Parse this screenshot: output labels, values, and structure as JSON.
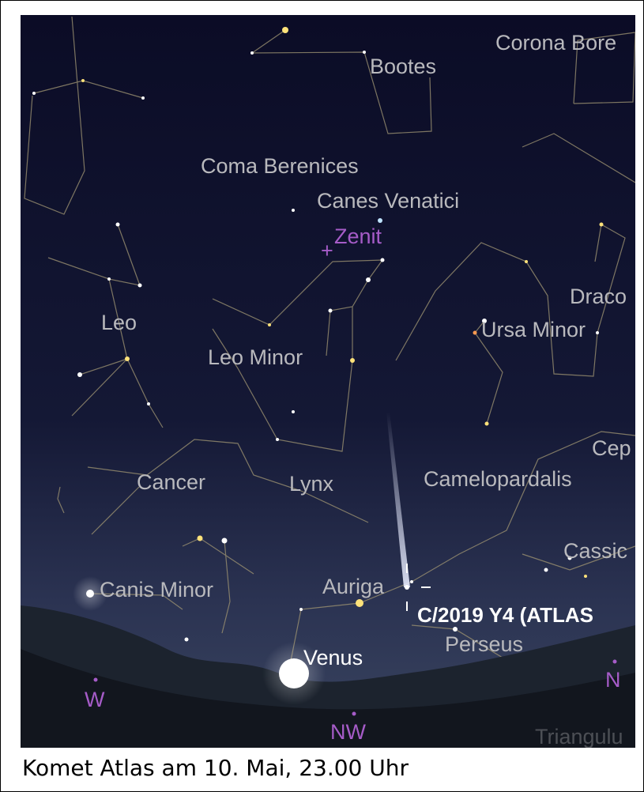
{
  "sky": {
    "constellations": [
      "Corona Bore",
      "Bootes",
      "Coma Berenices",
      "Canes Venatici",
      "Leo",
      "Leo Minor",
      "Draco",
      "Ursa Minor",
      "Cep",
      "Cancer",
      "Lynx",
      "Camelopardalis",
      "Cassic",
      "Canis Minor",
      "Auriga",
      "Perseus",
      "Triangulu"
    ],
    "zenith": "Zenit",
    "comet": "C/2019 Y4 (ATLAS",
    "planet": "Venus",
    "compass": [
      "W",
      "NW",
      "N"
    ]
  },
  "caption": "Komet Atlas am 10. Mai, 23.00 Uhr"
}
